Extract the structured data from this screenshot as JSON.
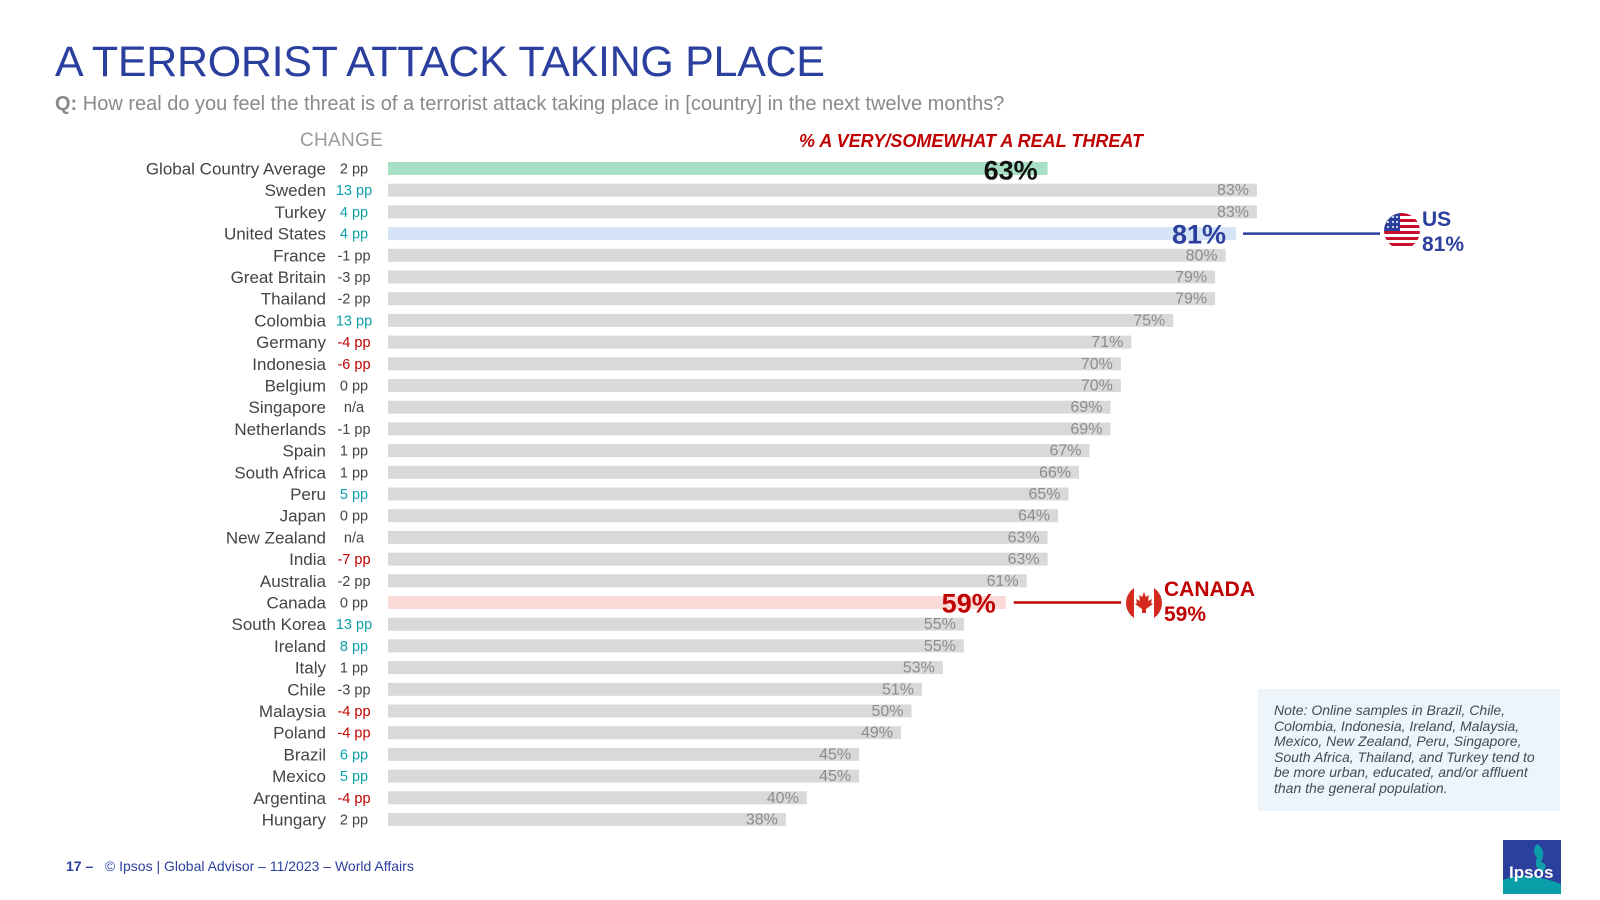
{
  "title": "A TERRORIST ATTACK TAKING PLACE",
  "question": {
    "prefix": "Q:",
    "text": "How real do you feel the threat is of a terrorist attack taking place in [country] in the next twelve months?"
  },
  "headers": {
    "change": "CHANGE",
    "measure": "% A VERY/SOMEWHAT A REAL THREAT"
  },
  "colors": {
    "title": "#2B3F9E",
    "bar_default": "#D9D9D9",
    "bar_global": "#A8E0C6",
    "bar_us": "#D6E4F7",
    "bar_canada": "#FAD9D6",
    "positive_change": "#0A9FA8",
    "negative_change": "#C00000",
    "neutral_change": "#444444",
    "us_accent": "#2B3F9E",
    "canada_accent": "#C00000"
  },
  "chart_data": {
    "type": "bar",
    "orientation": "horizontal",
    "xlim": [
      0,
      100
    ],
    "categories": [
      "Global Country Average",
      "Sweden",
      "Turkey",
      "United States",
      "France",
      "Great Britain",
      "Thailand",
      "Colombia",
      "Germany",
      "Indonesia",
      "Belgium",
      "Singapore",
      "Netherlands",
      "Spain",
      "South Africa",
      "Peru",
      "Japan",
      "New Zealand",
      "India",
      "Australia",
      "Canada",
      "South Korea",
      "Ireland",
      "Italy",
      "Chile",
      "Malaysia",
      "Poland",
      "Brazil",
      "Mexico",
      "Argentina",
      "Hungary"
    ],
    "values": [
      63,
      83,
      83,
      81,
      80,
      79,
      79,
      75,
      71,
      70,
      70,
      69,
      69,
      67,
      66,
      65,
      64,
      63,
      63,
      61,
      59,
      55,
      55,
      53,
      51,
      50,
      49,
      45,
      45,
      40,
      38
    ],
    "value_labels": [
      "63%",
      "83%",
      "83%",
      "81%",
      "80%",
      "79%",
      "79%",
      "75%",
      "71%",
      "70%",
      "70%",
      "69%",
      "69%",
      "67%",
      "66%",
      "65%",
      "64%",
      "63%",
      "63%",
      "61%",
      "59%",
      "55%",
      "55%",
      "53%",
      "51%",
      "50%",
      "49%",
      "45%",
      "45%",
      "40%",
      "38%"
    ],
    "change_labels": [
      "2 pp",
      "13 pp",
      "4 pp",
      "4 pp",
      "-1 pp",
      "-3 pp",
      "-2 pp",
      "13 pp",
      "-4 pp",
      "-6 pp",
      "0 pp",
      "n/a",
      "-1 pp",
      "1 pp",
      "1 pp",
      "5 pp",
      "0 pp",
      "n/a",
      "-7 pp",
      "-2 pp",
      "0 pp",
      "13 pp",
      "8 pp",
      "1 pp",
      "-3 pp",
      "-4 pp",
      "-4 pp",
      "6 pp",
      "5 pp",
      "-4 pp",
      "2 pp"
    ],
    "change_status": [
      "neutral",
      "positive",
      "positive",
      "positive",
      "neutral",
      "neutral",
      "neutral",
      "positive",
      "negative",
      "negative",
      "neutral",
      "neutral",
      "neutral",
      "neutral",
      "neutral",
      "positive",
      "neutral",
      "neutral",
      "negative",
      "neutral",
      "neutral",
      "positive",
      "positive",
      "neutral",
      "neutral",
      "negative",
      "negative",
      "positive",
      "positive",
      "negative",
      "neutral"
    ],
    "highlights": [
      "global",
      "none",
      "none",
      "us",
      "none",
      "none",
      "none",
      "none",
      "none",
      "none",
      "none",
      "none",
      "none",
      "none",
      "none",
      "none",
      "none",
      "none",
      "none",
      "none",
      "canada",
      "none",
      "none",
      "none",
      "none",
      "none",
      "none",
      "none",
      "none",
      "none",
      "none"
    ]
  },
  "callouts": {
    "us": {
      "label": "US",
      "value": "81%",
      "icon": "us-flag-icon"
    },
    "canada": {
      "label": "CANADA",
      "value": "59%",
      "icon": "canada-flag-icon"
    }
  },
  "note": "Note: Online samples in Brazil, Chile, Colombia, Indonesia, Ireland, Malaysia, Mexico, New Zealand, Peru, Singapore, South Africa, Thailand, and Turkey tend to be more urban, educated, and/or affluent than the general population.",
  "footer": {
    "page": "17 –",
    "text": "© Ipsos | Global Advisor – 11/2023 – World Affairs"
  },
  "logo": {
    "text": "Ipsos"
  }
}
